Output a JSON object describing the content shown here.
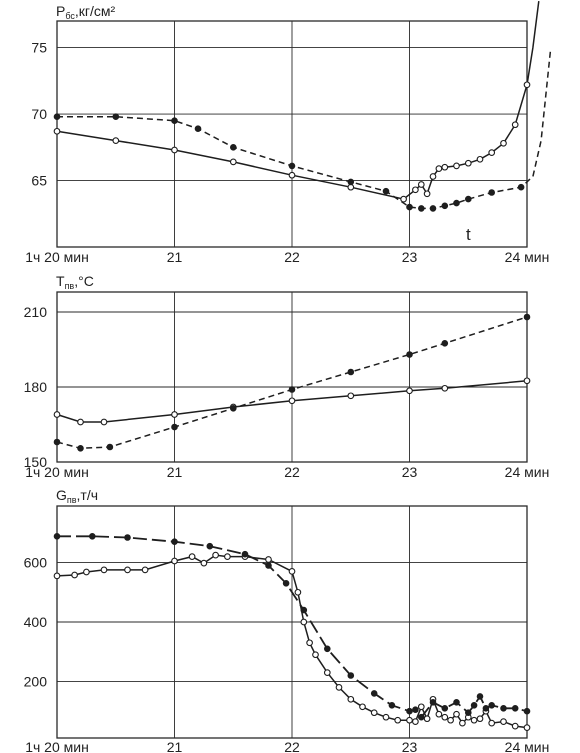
{
  "chart_data": [
    {
      "type": "line",
      "ylabel_main": "P",
      "ylabel_sub": "бс",
      "ylabel_unit": ",кг/см²",
      "ylim": [
        60,
        77
      ],
      "xlim": [
        20.0,
        24.0
      ],
      "grid": true,
      "y_ticks": [
        {
          "value": 65,
          "label": "65"
        },
        {
          "value": 70,
          "label": "70"
        },
        {
          "value": 75,
          "label": "75"
        }
      ],
      "x_ticks": [
        {
          "value": 20.0,
          "label": "1ч 20 мин"
        },
        {
          "value": 21.0,
          "label": "21"
        },
        {
          "value": 22.0,
          "label": "22"
        },
        {
          "value": 23.0,
          "label": "23"
        },
        {
          "value": 24.0,
          "label": "24 мин"
        }
      ],
      "annotations": [
        {
          "text": "t",
          "x": 23.25,
          "y": 62.8
        }
      ],
      "series": [
        {
          "style": "solid",
          "marker": "open",
          "x": [
            20.0,
            20.5,
            21.0,
            21.5,
            22.0,
            22.5,
            22.95,
            23.05,
            23.1,
            23.15,
            23.2,
            23.25,
            23.3,
            23.4,
            23.5,
            23.6,
            23.7,
            23.8,
            23.9,
            24.0,
            24.05,
            24.1
          ],
          "y": [
            68.7,
            68.0,
            67.3,
            66.4,
            65.4,
            64.5,
            63.6,
            64.3,
            64.7,
            64.0,
            65.3,
            65.9,
            66.0,
            66.1,
            66.3,
            66.6,
            67.1,
            67.8,
            69.2,
            72.2,
            75.0,
            78.5
          ]
        },
        {
          "style": "dashed",
          "marker": "filled",
          "x": [
            20.0,
            20.5,
            21.0,
            21.2,
            21.5,
            22.0,
            22.5,
            22.8,
            23.0,
            23.1,
            23.2,
            23.3,
            23.4,
            23.5,
            23.7,
            23.95,
            24.05,
            24.12,
            24.2
          ],
          "y": [
            69.8,
            69.8,
            69.5,
            68.9,
            67.5,
            66.1,
            64.9,
            64.2,
            63.0,
            62.9,
            62.9,
            63.1,
            63.3,
            63.6,
            64.1,
            64.5,
            65.3,
            68.0,
            74.8
          ]
        }
      ]
    },
    {
      "type": "line",
      "ylabel_main": "T",
      "ylabel_sub": "пв",
      "ylabel_unit": ",°C",
      "ylim": [
        150,
        218
      ],
      "xlim": [
        20.0,
        24.0
      ],
      "grid": true,
      "y_ticks": [
        {
          "value": 150,
          "label": "150"
        },
        {
          "value": 180,
          "label": "180"
        },
        {
          "value": 210,
          "label": "210"
        }
      ],
      "x_ticks": [
        {
          "value": 20.0,
          "label": "1ч 20 мин"
        },
        {
          "value": 21.0,
          "label": "21"
        },
        {
          "value": 22.0,
          "label": "22"
        },
        {
          "value": 23.0,
          "label": "23"
        },
        {
          "value": 24.0,
          "label": "24 мин"
        }
      ],
      "series": [
        {
          "style": "solid",
          "marker": "open",
          "x": [
            20.0,
            20.2,
            20.4,
            21.0,
            21.5,
            22.0,
            22.5,
            23.0,
            23.3,
            24.0
          ],
          "y": [
            169,
            166,
            166,
            169,
            172,
            174.5,
            176.5,
            178.5,
            179.5,
            182.5
          ]
        },
        {
          "style": "dashed",
          "marker": "filled",
          "x": [
            20.0,
            20.2,
            20.45,
            21.0,
            21.5,
            22.0,
            22.5,
            23.0,
            23.3,
            24.0
          ],
          "y": [
            158,
            155.5,
            156,
            164,
            171.5,
            179,
            186,
            193,
            197.5,
            208
          ]
        }
      ]
    },
    {
      "type": "line",
      "ylabel_main": "G",
      "ylabel_sub": "пв",
      "ylabel_unit": ",т/ч",
      "ylim": [
        10,
        790
      ],
      "xlim": [
        20.0,
        24.0
      ],
      "grid": true,
      "y_ticks": [
        {
          "value": 200,
          "label": "200"
        },
        {
          "value": 400,
          "label": "400"
        },
        {
          "value": 600,
          "label": "600"
        }
      ],
      "x_ticks": [
        {
          "value": 20.0,
          "label": "1ч 20 мин"
        },
        {
          "value": 21.0,
          "label": "21"
        },
        {
          "value": 22.0,
          "label": "22"
        },
        {
          "value": 23.0,
          "label": "23"
        },
        {
          "value": 24.0,
          "label": "24 мин"
        }
      ],
      "series": [
        {
          "style": "solid",
          "marker": "open",
          "x": [
            20.0,
            20.15,
            20.25,
            20.4,
            20.6,
            20.75,
            21.0,
            21.15,
            21.25,
            21.35,
            21.45,
            21.6,
            21.8,
            22.0,
            22.05,
            22.1,
            22.15,
            22.2,
            22.3,
            22.4,
            22.5,
            22.6,
            22.7,
            22.8,
            22.9,
            23.0,
            23.05,
            23.1,
            23.15,
            23.2,
            23.25,
            23.3,
            23.35,
            23.4,
            23.45,
            23.5,
            23.55,
            23.6,
            23.65,
            23.7,
            23.8,
            23.9,
            24.0
          ],
          "y": [
            555,
            558,
            568,
            575,
            575,
            575,
            605,
            620,
            598,
            625,
            620,
            620,
            610,
            570,
            500,
            400,
            330,
            290,
            230,
            180,
            140,
            115,
            95,
            80,
            70,
            70,
            65,
            115,
            75,
            140,
            90,
            80,
            70,
            90,
            60,
            80,
            70,
            75,
            100,
            60,
            65,
            50,
            45
          ]
        },
        {
          "style": "longdash",
          "marker": "filled",
          "x": [
            20.0,
            20.3,
            20.6,
            21.0,
            21.3,
            21.6,
            21.8,
            21.95,
            22.1,
            22.3,
            22.5,
            22.7,
            22.85,
            23.0,
            23.05,
            23.1,
            23.2,
            23.3,
            23.4,
            23.5,
            23.55,
            23.6,
            23.65,
            23.7,
            23.8,
            23.9,
            24.0
          ],
          "y": [
            688,
            688,
            684,
            670,
            655,
            628,
            590,
            530,
            440,
            310,
            220,
            160,
            120,
            100,
            105,
            80,
            130,
            110,
            130,
            95,
            120,
            150,
            110,
            120,
            110,
            110,
            100
          ]
        }
      ]
    }
  ]
}
